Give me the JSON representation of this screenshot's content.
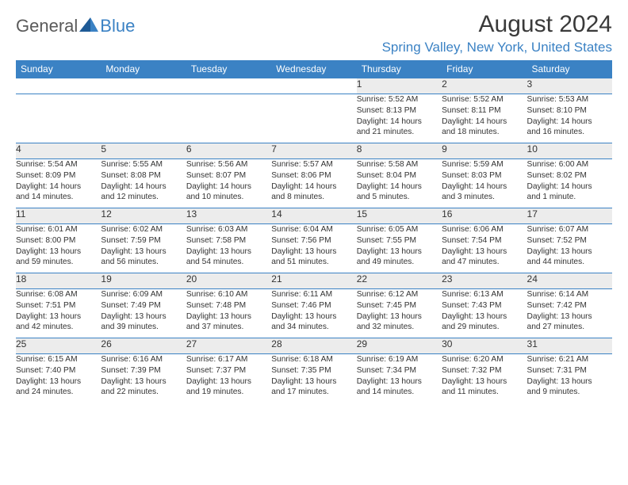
{
  "brand": {
    "part1": "General",
    "part2": "Blue"
  },
  "title": "August 2024",
  "location": "Spring Valley, New York, United States",
  "day_headers": [
    "Sunday",
    "Monday",
    "Tuesday",
    "Wednesday",
    "Thursday",
    "Friday",
    "Saturday"
  ],
  "colors": {
    "accent": "#3b82c4",
    "header_text": "#ffffff",
    "daynum_bg": "#ececec",
    "border": "#3b82c4",
    "text": "#333333",
    "background": "#ffffff",
    "logo_gray": "#5a5a5a"
  },
  "typography": {
    "title_fontsize": 30,
    "location_fontsize": 17,
    "header_fontsize": 12,
    "daynum_fontsize": 12,
    "detail_fontsize": 10.2
  },
  "layout": {
    "columns": 7,
    "weeks": 5,
    "month_start_weekday": 4,
    "days_in_month": 31
  },
  "days": [
    {
      "n": 1,
      "sunrise": "5:52 AM",
      "sunset": "8:13 PM",
      "dl_h": 14,
      "dl_m": 21
    },
    {
      "n": 2,
      "sunrise": "5:52 AM",
      "sunset": "8:11 PM",
      "dl_h": 14,
      "dl_m": 18
    },
    {
      "n": 3,
      "sunrise": "5:53 AM",
      "sunset": "8:10 PM",
      "dl_h": 14,
      "dl_m": 16
    },
    {
      "n": 4,
      "sunrise": "5:54 AM",
      "sunset": "8:09 PM",
      "dl_h": 14,
      "dl_m": 14
    },
    {
      "n": 5,
      "sunrise": "5:55 AM",
      "sunset": "8:08 PM",
      "dl_h": 14,
      "dl_m": 12
    },
    {
      "n": 6,
      "sunrise": "5:56 AM",
      "sunset": "8:07 PM",
      "dl_h": 14,
      "dl_m": 10
    },
    {
      "n": 7,
      "sunrise": "5:57 AM",
      "sunset": "8:06 PM",
      "dl_h": 14,
      "dl_m": 8
    },
    {
      "n": 8,
      "sunrise": "5:58 AM",
      "sunset": "8:04 PM",
      "dl_h": 14,
      "dl_m": 5
    },
    {
      "n": 9,
      "sunrise": "5:59 AM",
      "sunset": "8:03 PM",
      "dl_h": 14,
      "dl_m": 3
    },
    {
      "n": 10,
      "sunrise": "6:00 AM",
      "sunset": "8:02 PM",
      "dl_h": 14,
      "dl_m": 1
    },
    {
      "n": 11,
      "sunrise": "6:01 AM",
      "sunset": "8:00 PM",
      "dl_h": 13,
      "dl_m": 59
    },
    {
      "n": 12,
      "sunrise": "6:02 AM",
      "sunset": "7:59 PM",
      "dl_h": 13,
      "dl_m": 56
    },
    {
      "n": 13,
      "sunrise": "6:03 AM",
      "sunset": "7:58 PM",
      "dl_h": 13,
      "dl_m": 54
    },
    {
      "n": 14,
      "sunrise": "6:04 AM",
      "sunset": "7:56 PM",
      "dl_h": 13,
      "dl_m": 51
    },
    {
      "n": 15,
      "sunrise": "6:05 AM",
      "sunset": "7:55 PM",
      "dl_h": 13,
      "dl_m": 49
    },
    {
      "n": 16,
      "sunrise": "6:06 AM",
      "sunset": "7:54 PM",
      "dl_h": 13,
      "dl_m": 47
    },
    {
      "n": 17,
      "sunrise": "6:07 AM",
      "sunset": "7:52 PM",
      "dl_h": 13,
      "dl_m": 44
    },
    {
      "n": 18,
      "sunrise": "6:08 AM",
      "sunset": "7:51 PM",
      "dl_h": 13,
      "dl_m": 42
    },
    {
      "n": 19,
      "sunrise": "6:09 AM",
      "sunset": "7:49 PM",
      "dl_h": 13,
      "dl_m": 39
    },
    {
      "n": 20,
      "sunrise": "6:10 AM",
      "sunset": "7:48 PM",
      "dl_h": 13,
      "dl_m": 37
    },
    {
      "n": 21,
      "sunrise": "6:11 AM",
      "sunset": "7:46 PM",
      "dl_h": 13,
      "dl_m": 34
    },
    {
      "n": 22,
      "sunrise": "6:12 AM",
      "sunset": "7:45 PM",
      "dl_h": 13,
      "dl_m": 32
    },
    {
      "n": 23,
      "sunrise": "6:13 AM",
      "sunset": "7:43 PM",
      "dl_h": 13,
      "dl_m": 29
    },
    {
      "n": 24,
      "sunrise": "6:14 AM",
      "sunset": "7:42 PM",
      "dl_h": 13,
      "dl_m": 27
    },
    {
      "n": 25,
      "sunrise": "6:15 AM",
      "sunset": "7:40 PM",
      "dl_h": 13,
      "dl_m": 24
    },
    {
      "n": 26,
      "sunrise": "6:16 AM",
      "sunset": "7:39 PM",
      "dl_h": 13,
      "dl_m": 22
    },
    {
      "n": 27,
      "sunrise": "6:17 AM",
      "sunset": "7:37 PM",
      "dl_h": 13,
      "dl_m": 19
    },
    {
      "n": 28,
      "sunrise": "6:18 AM",
      "sunset": "7:35 PM",
      "dl_h": 13,
      "dl_m": 17
    },
    {
      "n": 29,
      "sunrise": "6:19 AM",
      "sunset": "7:34 PM",
      "dl_h": 13,
      "dl_m": 14
    },
    {
      "n": 30,
      "sunrise": "6:20 AM",
      "sunset": "7:32 PM",
      "dl_h": 13,
      "dl_m": 11
    },
    {
      "n": 31,
      "sunrise": "6:21 AM",
      "sunset": "7:31 PM",
      "dl_h": 13,
      "dl_m": 9
    }
  ],
  "labels": {
    "sunrise": "Sunrise: ",
    "sunset": "Sunset: ",
    "daylight_prefix": "Daylight: ",
    "hours_word": " hours",
    "and_word": "and ",
    "minutes_suffix": " minutes.",
    "minute_suffix": " minute."
  }
}
